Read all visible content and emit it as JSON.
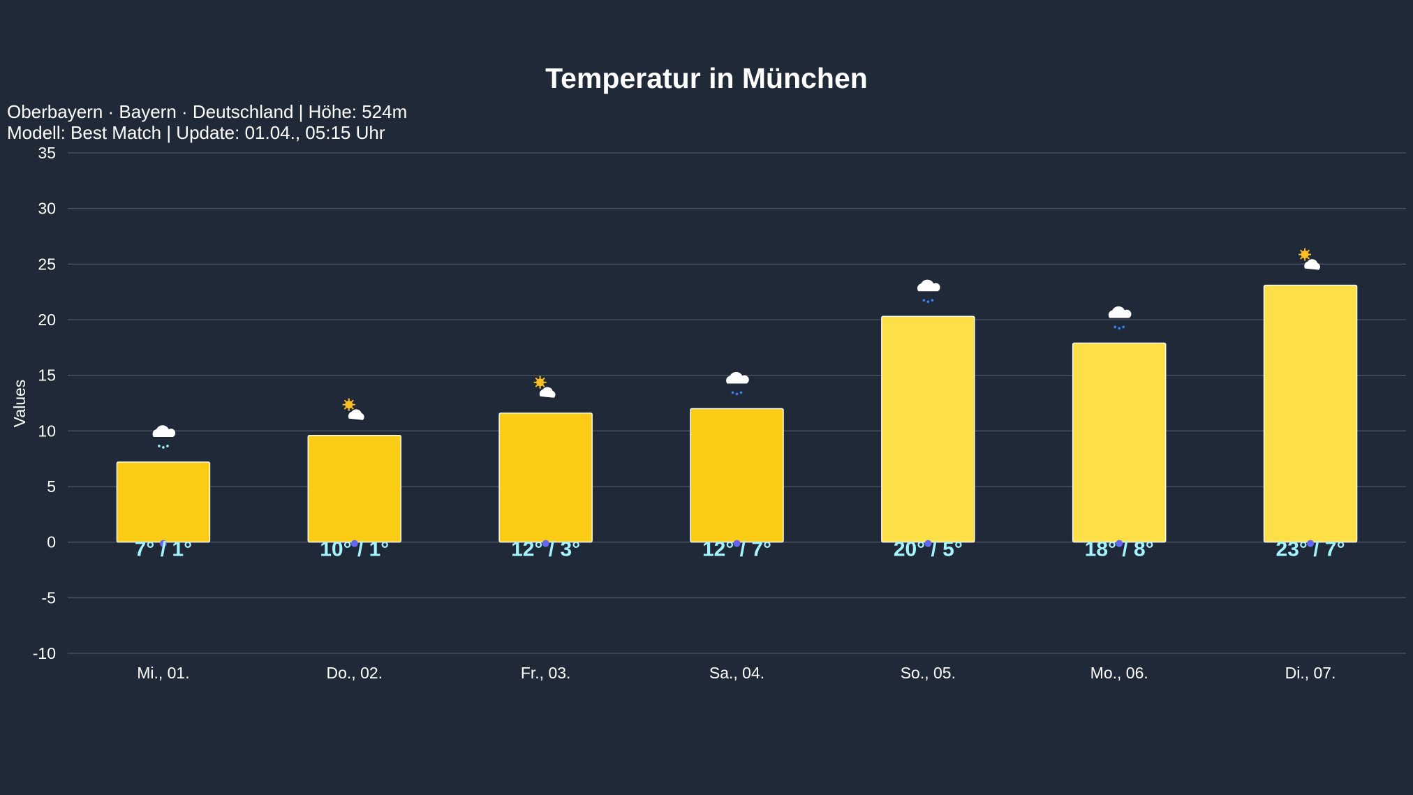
{
  "chart_data": {
    "type": "bar",
    "title": "Temperatur in München",
    "subtitle": [
      "Oberbayern · Bayern · Deutschland | Höhe: 524m",
      "Modell: Best Match | Update: 01.04., 05:15 Uhr"
    ],
    "ylabel": "Values",
    "xlabel": "",
    "ylim": [
      -10,
      35
    ],
    "yticks": [
      35,
      30,
      25,
      20,
      15,
      10,
      5,
      0,
      -5,
      -10
    ],
    "grid": true,
    "categories": [
      "Mi., 01.",
      "Do., 02.",
      "Fr., 03.",
      "Sa., 04.",
      "So., 05.",
      "Mo., 06.",
      "Di., 07."
    ],
    "values": [
      7.2,
      9.6,
      11.6,
      12.0,
      20.3,
      17.9,
      23.1
    ],
    "labels": [
      "7° / 1°",
      "10° / 1°",
      "12° / 3°",
      "12° / 7°",
      "20° / 5°",
      "18° / 8°",
      "23° / 7°"
    ],
    "lows": [
      1,
      1,
      3,
      7,
      5,
      8,
      7
    ],
    "icons": [
      "cloud-rain-icon",
      "sun-cloud-icon",
      "sun-cloud-icon",
      "cloud-rain-icon",
      "cloud-rain-icon",
      "cloud-rain-icon",
      "sun-cloud-icon"
    ],
    "bar_colors": [
      "#facc15",
      "#facc15",
      "#facc15",
      "#facc15",
      "#fde047",
      "#fde047",
      "#fde047"
    ],
    "colors": {
      "background": "#1f2937",
      "label": "#a5f3fc",
      "grid": "#4b5563",
      "low_marker": "#6366f1"
    }
  }
}
